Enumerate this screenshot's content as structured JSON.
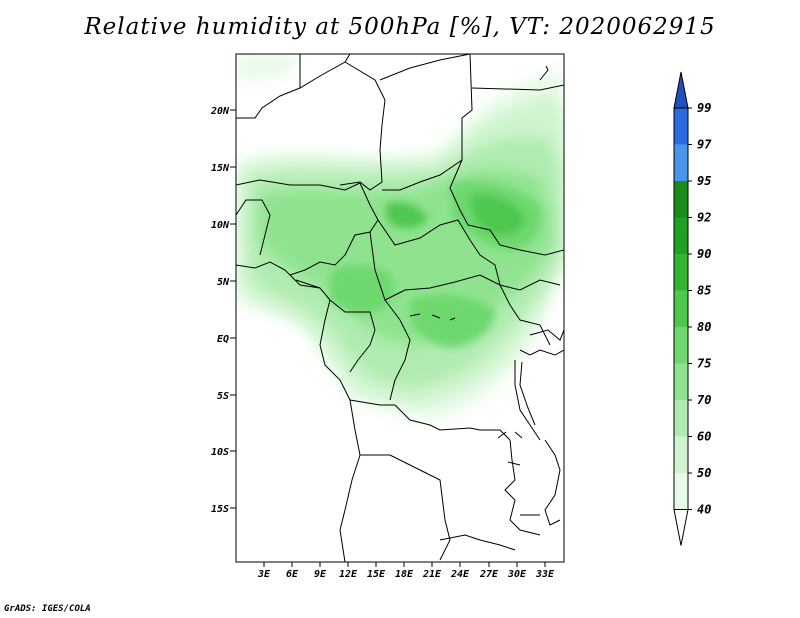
{
  "title": "Relative humidity at 500hPa [%], VT: 2020062915",
  "credit": "GrADS: IGES/COLA",
  "map": {
    "lat_labels": [
      "20N",
      "15N",
      "10N",
      "5N",
      "EQ",
      "5S",
      "10S",
      "15S"
    ],
    "lon_labels": [
      "3E",
      "6E",
      "9E",
      "12E",
      "15E",
      "18E",
      "21E",
      "24E",
      "27E",
      "30E",
      "33E"
    ],
    "lat_range": [
      -20,
      25
    ],
    "lon_range": [
      0,
      35
    ]
  },
  "colorbar": {
    "labels": [
      "99",
      "97",
      "95",
      "92",
      "90",
      "85",
      "80",
      "75",
      "70",
      "60",
      "50",
      "40"
    ],
    "colors": {
      "gt99": "#1f4fc2",
      "97_99": "#2a6be0",
      "95_97": "#4a94ea",
      "92_95": "#1a8c1a",
      "90_92": "#22a022",
      "85_90": "#33b533",
      "80_85": "#50c850",
      "75_80": "#6ed86e",
      "70_75": "#8fe38f",
      "60_70": "#b0ecb0",
      "50_60": "#cff4cf",
      "40_50": "#e8fbe8",
      "lt40": "#ffffff"
    }
  }
}
